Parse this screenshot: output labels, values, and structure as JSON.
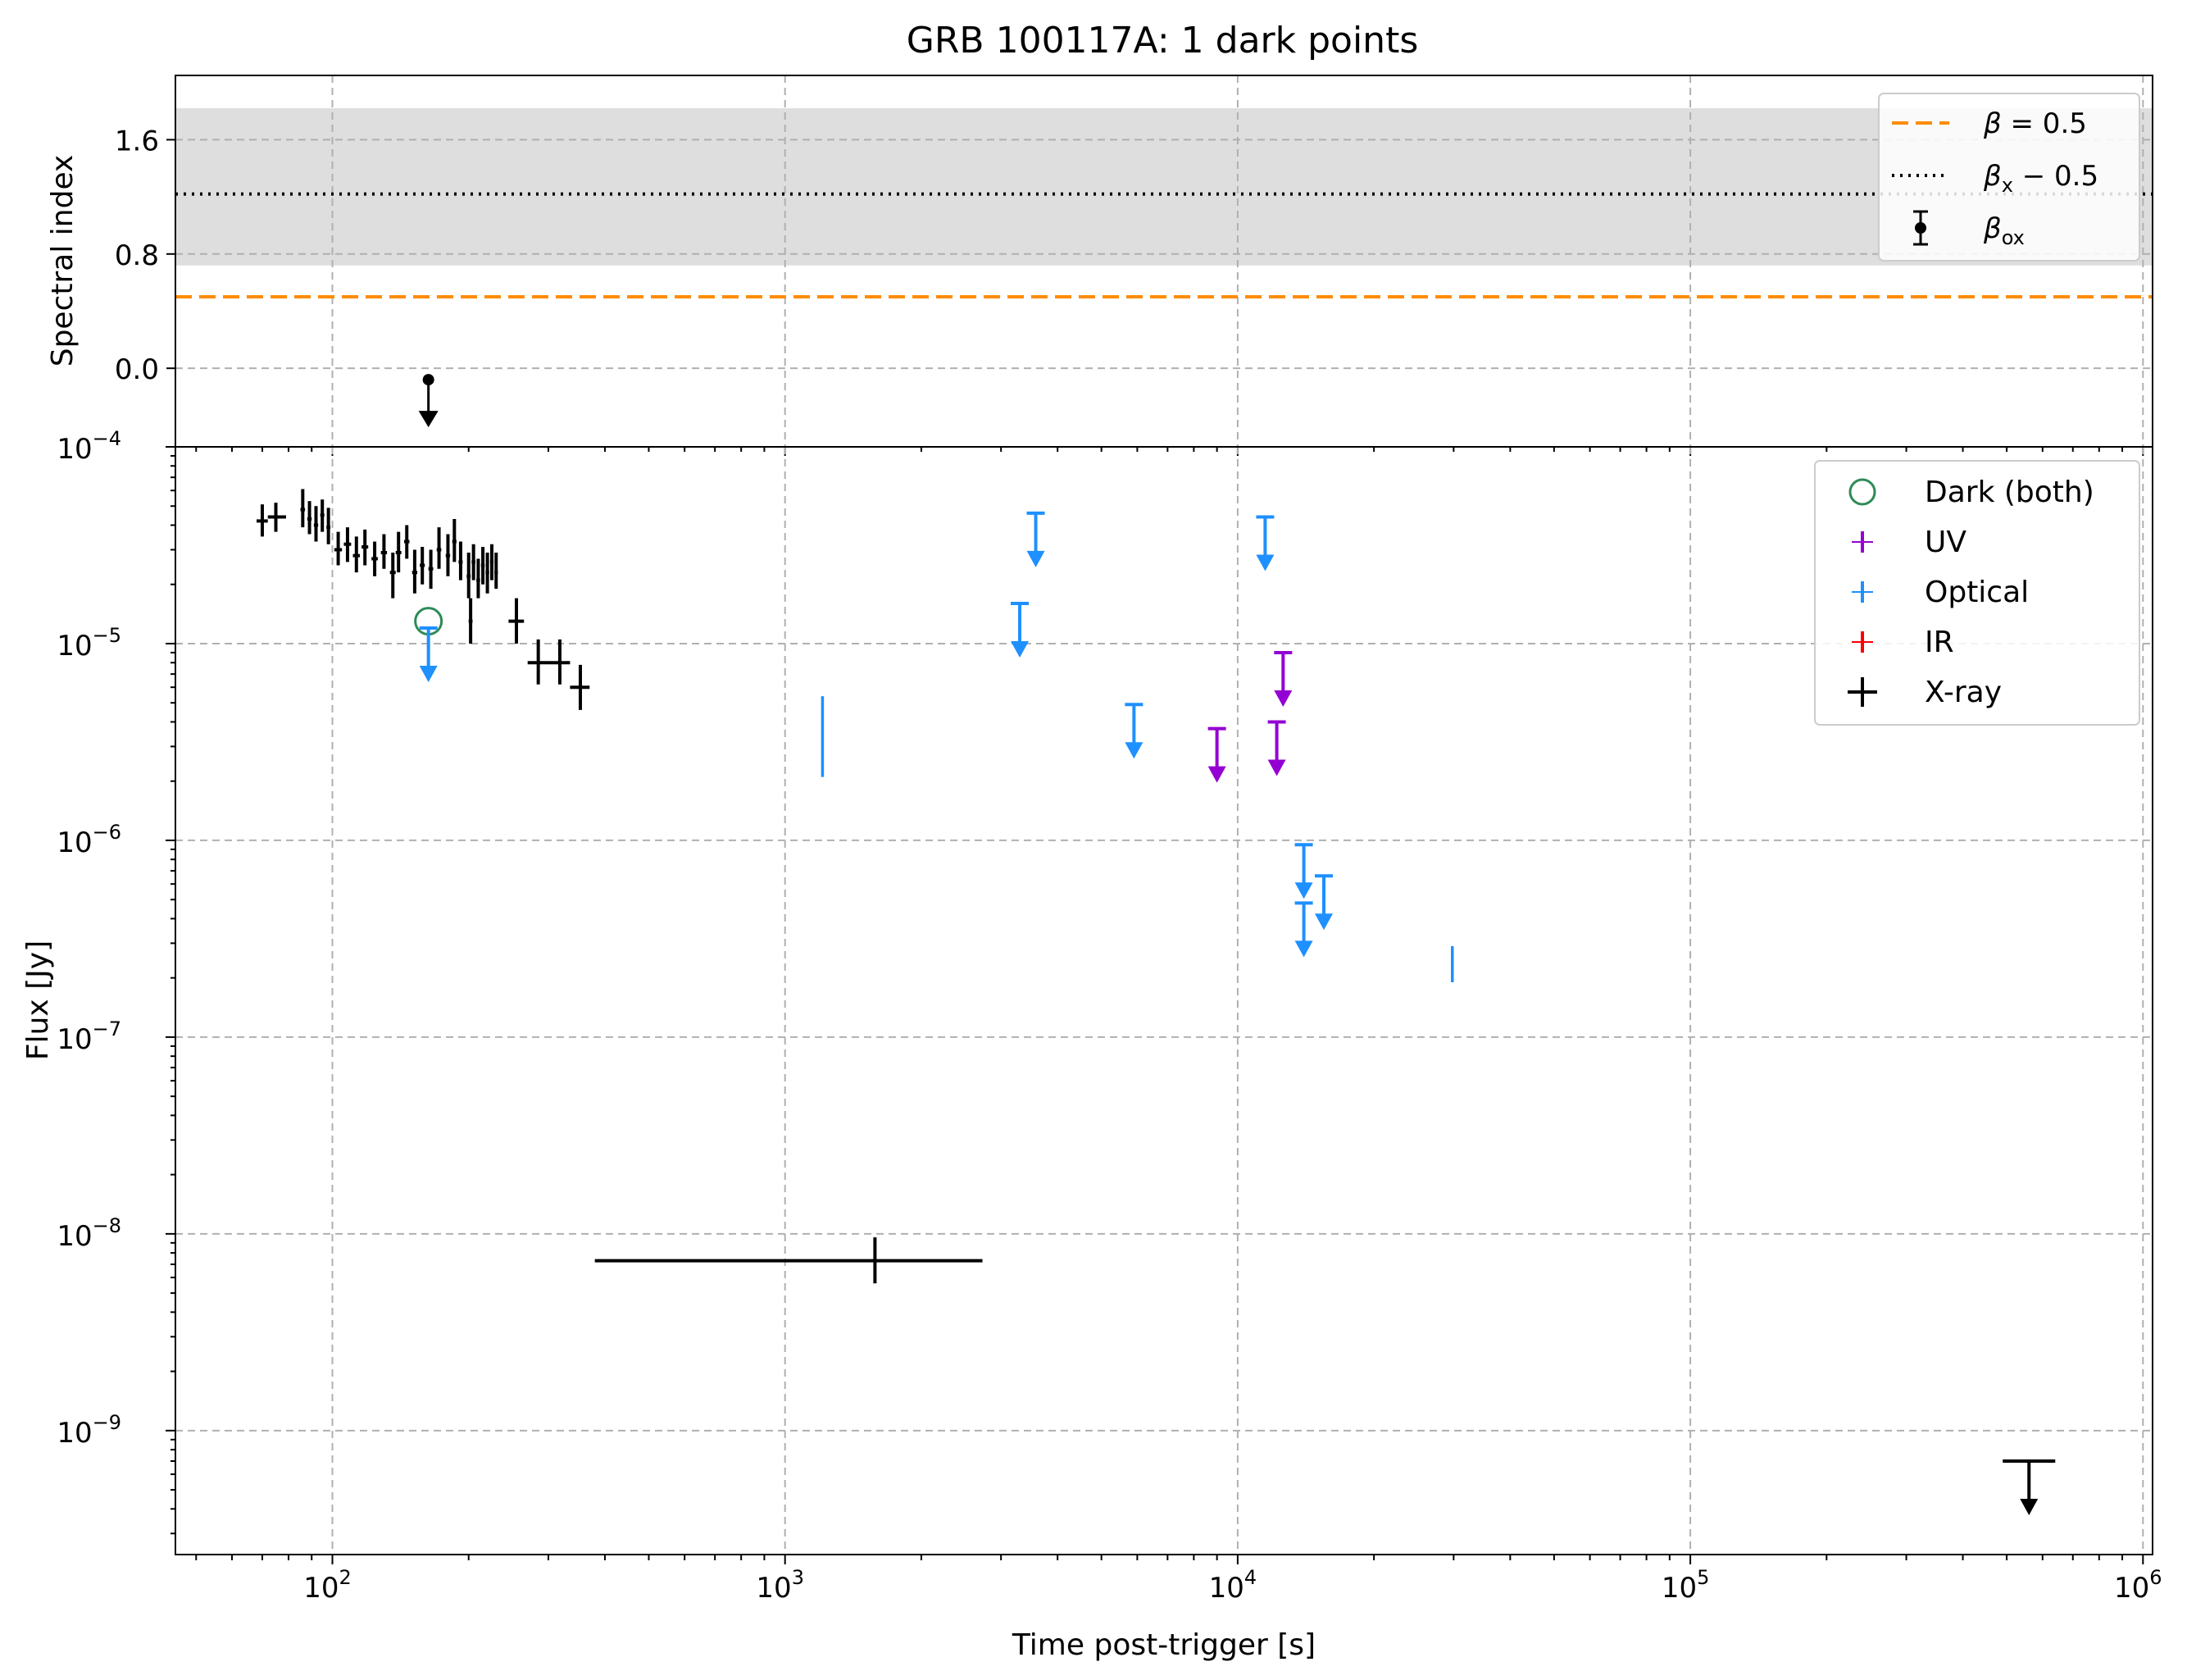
{
  "figure": {
    "title": "GRB 100117A: 1 dark points"
  },
  "chart_data": [
    {
      "panel": "top",
      "type": "scatter",
      "ylabel": "Spectral index",
      "xscale": "log",
      "xlim": [
        45,
        1050000
      ],
      "ylim": [
        -0.55,
        2.05
      ],
      "y_ticks": [
        {
          "value": 0.0,
          "label": "0.0"
        },
        {
          "value": 0.8,
          "label": "0.8"
        },
        {
          "value": 1.6,
          "label": "1.6"
        }
      ],
      "grid": true,
      "shaded_band": {
        "y_low": 0.72,
        "y_high": 1.82,
        "color": "#dedede"
      },
      "lines": [
        {
          "label_tex": [
            "β",
            " = 0.5"
          ],
          "y": 0.5,
          "style": "dashed",
          "color": "#ff8c00"
        },
        {
          "label_tex": [
            "β",
            "x",
            " − 0.5"
          ],
          "y": 1.22,
          "style": "dotted",
          "color": "#000000"
        }
      ],
      "points": [
        {
          "label_tex": [
            "β",
            "ox"
          ],
          "x": 163,
          "y": -0.08,
          "upper_limit": true,
          "color": "#000000"
        }
      ],
      "legend_position": "top-right"
    },
    {
      "panel": "bottom",
      "type": "scatter",
      "xlabel": "Time post-trigger [s]",
      "ylabel": "Flux [Jy]",
      "xscale": "log",
      "yscale": "log",
      "xlim": [
        45,
        1050000
      ],
      "ylim_log10": [
        -9.63,
        -4.0
      ],
      "x_ticks": [
        {
          "exp": 2,
          "base": "10",
          "sup": "2"
        },
        {
          "exp": 3,
          "base": "10",
          "sup": "3"
        },
        {
          "exp": 4,
          "base": "10",
          "sup": "4"
        },
        {
          "exp": 5,
          "base": "10",
          "sup": "5"
        },
        {
          "exp": 6,
          "base": "10",
          "sup": "6"
        }
      ],
      "y_ticks": [
        {
          "exp": -9,
          "base": "10",
          "sup": "−9"
        },
        {
          "exp": -8,
          "base": "10",
          "sup": "−8"
        },
        {
          "exp": -7,
          "base": "10",
          "sup": "−7"
        },
        {
          "exp": -6,
          "base": "10",
          "sup": "−6"
        },
        {
          "exp": -5,
          "base": "10",
          "sup": "−5"
        },
        {
          "exp": -4,
          "base": "10",
          "sup": "−4"
        }
      ],
      "grid": true,
      "legend_position": "top-right",
      "series": [
        {
          "name": "Dark (both)",
          "marker": "open-circle",
          "color": "#2e8b57",
          "points": [
            {
              "x": 163,
              "y": 1.3e-05
            }
          ]
        },
        {
          "name": "UV",
          "marker": "cross",
          "color": "#9400d3",
          "points": [
            {
              "x": 9000,
              "y": 3.7e-06,
              "upper_limit": true
            },
            {
              "x": 12200,
              "y": 4e-06,
              "upper_limit": true
            },
            {
              "x": 12600,
              "y": 9e-06,
              "upper_limit": true
            }
          ]
        },
        {
          "name": "Optical",
          "marker": "cross",
          "color": "#1e90ff",
          "points": [
            {
              "x": 163,
              "y": 1.2e-05,
              "upper_limit": true
            },
            {
              "x": 1210,
              "y": 3.8e-06,
              "xerr": [
                40,
                40
              ],
              "yerr": [
                2.1e-06,
                5.4e-06
              ]
            },
            {
              "x": 3300,
              "y": 1.6e-05,
              "upper_limit": true
            },
            {
              "x": 3580,
              "y": 4.6e-05,
              "upper_limit": true
            },
            {
              "x": 5900,
              "y": 4.9e-06,
              "upper_limit": true
            },
            {
              "x": 11500,
              "y": 4.4e-05,
              "upper_limit": true
            },
            {
              "x": 14000,
              "y": 9.5e-07,
              "upper_limit": true
            },
            {
              "x": 14000,
              "y": 4.8e-07,
              "upper_limit": true
            },
            {
              "x": 15500,
              "y": 6.6e-07,
              "upper_limit": true
            },
            {
              "x": 29800,
              "y": 2.4e-07,
              "xerr": [
                1000,
                1000
              ],
              "yerr": [
                1.9e-07,
                2.9e-07
              ]
            }
          ]
        },
        {
          "name": "IR",
          "marker": "cross",
          "color": "#ff0000",
          "points": []
        },
        {
          "name": "X-ray",
          "marker": "cross",
          "color": "#000000",
          "points": [
            {
              "x": 70,
              "y": 4.2e-05,
              "xerr": [
                68,
                72
              ],
              "yerr": [
                3.5e-05,
                5.1e-05
              ]
            },
            {
              "x": 75,
              "y": 4.4e-05,
              "xerr": [
                72,
                79
              ],
              "yerr": [
                3.7e-05,
                5.2e-05
              ]
            },
            {
              "x": 86,
              "y": 4.8e-05,
              "xerr": [
                85,
                87
              ],
              "yerr": [
                3.9e-05,
                6.1e-05
              ]
            },
            {
              "x": 89,
              "y": 4.3e-05,
              "xerr": [
                88,
                90
              ],
              "yerr": [
                3.6e-05,
                5.3e-05
              ]
            },
            {
              "x": 92,
              "y": 4e-05,
              "xerr": [
                91,
                93
              ],
              "yerr": [
                3.3e-05,
                5e-05
              ]
            },
            {
              "x": 95,
              "y": 4.5e-05,
              "xerr": [
                94,
                96
              ],
              "yerr": [
                3.7e-05,
                5.4e-05
              ]
            },
            {
              "x": 98,
              "y": 3.9e-05,
              "xerr": [
                97,
                99
              ],
              "yerr": [
                3.2e-05,
                4.9e-05
              ]
            },
            {
              "x": 103,
              "y": 3e-05,
              "xerr": [
                101,
                105
              ],
              "yerr": [
                2.5e-05,
                3.7e-05
              ]
            },
            {
              "x": 108,
              "y": 3.2e-05,
              "xerr": [
                106,
                110
              ],
              "yerr": [
                2.6e-05,
                3.9e-05
              ]
            },
            {
              "x": 113,
              "y": 2.8e-05,
              "xerr": [
                111,
                115
              ],
              "yerr": [
                2.3e-05,
                3.5e-05
              ]
            },
            {
              "x": 118,
              "y": 3.1e-05,
              "xerr": [
                116,
                120
              ],
              "yerr": [
                2.5e-05,
                3.8e-05
              ]
            },
            {
              "x": 124,
              "y": 2.7e-05,
              "xerr": [
                122,
                126
              ],
              "yerr": [
                2.2e-05,
                3.3e-05
              ]
            },
            {
              "x": 130,
              "y": 2.9e-05,
              "xerr": [
                128,
                132
              ],
              "yerr": [
                2.4e-05,
                3.6e-05
              ]
            },
            {
              "x": 136,
              "y": 2.3e-05,
              "xerr": [
                134,
                138
              ],
              "yerr": [
                1.7e-05,
                2.9e-05
              ]
            },
            {
              "x": 140,
              "y": 2.9e-05,
              "xerr": [
                138,
                142
              ],
              "yerr": [
                2.3e-05,
                3.7e-05
              ]
            },
            {
              "x": 146,
              "y": 3.3e-05,
              "xerr": [
                144,
                148
              ],
              "yerr": [
                2.7e-05,
                4e-05
              ]
            },
            {
              "x": 152,
              "y": 2.3e-05,
              "xerr": [
                150,
                154
              ],
              "yerr": [
                1.8e-05,
                3e-05
              ]
            },
            {
              "x": 158,
              "y": 2.5e-05,
              "xerr": [
                156,
                160
              ],
              "yerr": [
                2e-05,
                3.1e-05
              ]
            },
            {
              "x": 165,
              "y": 2.4e-05,
              "xerr": [
                163,
                167
              ],
              "yerr": [
                1.9e-05,
                3e-05
              ]
            },
            {
              "x": 172,
              "y": 3e-05,
              "xerr": [
                170,
                174
              ],
              "yerr": [
                2.4e-05,
                3.9e-05
              ]
            },
            {
              "x": 180,
              "y": 2.8e-05,
              "xerr": [
                178,
                182
              ],
              "yerr": [
                2.2e-05,
                3.6e-05
              ]
            },
            {
              "x": 186,
              "y": 3.3e-05,
              "xerr": [
                184,
                188
              ],
              "yerr": [
                2.6e-05,
                4.3e-05
              ]
            },
            {
              "x": 192,
              "y": 2.6e-05,
              "xerr": [
                190,
                194
              ],
              "yerr": [
                2.1e-05,
                3.3e-05
              ]
            },
            {
              "x": 200,
              "y": 2.2e-05,
              "xerr": [
                198,
                202
              ],
              "yerr": [
                1.7e-05,
                2.9e-05
              ]
            },
            {
              "x": 205,
              "y": 2.6e-05,
              "xerr": [
                203,
                207
              ],
              "yerr": [
                2.1e-05,
                3.2e-05
              ]
            },
            {
              "x": 210,
              "y": 2.1e-05,
              "xerr": [
                208,
                212
              ],
              "yerr": [
                1.7e-05,
                2.7e-05
              ]
            },
            {
              "x": 215,
              "y": 2.5e-05,
              "xerr": [
                213,
                217
              ],
              "yerr": [
                2e-05,
                3.1e-05
              ]
            },
            {
              "x": 220,
              "y": 2.3e-05,
              "xerr": [
                218,
                222
              ],
              "yerr": [
                1.8e-05,
                2.9e-05
              ]
            },
            {
              "x": 225,
              "y": 2.6e-05,
              "xerr": [
                223,
                227
              ],
              "yerr": [
                2.1e-05,
                3.2e-05
              ]
            },
            {
              "x": 230,
              "y": 2.3e-05,
              "xerr": [
                228,
                232
              ],
              "yerr": [
                1.9e-05,
                2.9e-05
              ]
            },
            {
              "x": 202,
              "y": 1.3e-05,
              "xerr": [
                200,
                204
              ],
              "yerr": [
                1e-05,
                1.7e-05
              ]
            },
            {
              "x": 255,
              "y": 1.3e-05,
              "xerr": [
                245,
                265
              ],
              "yerr": [
                1e-05,
                1.7e-05
              ]
            },
            {
              "x": 285,
              "y": 8e-06,
              "xerr": [
                270,
                300
              ],
              "yerr": [
                6.2e-06,
                1.05e-05
              ]
            },
            {
              "x": 318,
              "y": 8e-06,
              "xerr": [
                300,
                335
              ],
              "yerr": [
                6.2e-06,
                1.05e-05
              ]
            },
            {
              "x": 353,
              "y": 6e-06,
              "xerr": [
                335,
                370
              ],
              "yerr": [
                4.6e-06,
                7.8e-06
              ]
            },
            {
              "x": 1580,
              "y": 7.3e-09,
              "xerr": [
                380,
                2730
              ],
              "yerr": [
                5.6e-09,
                9.6e-09
              ]
            },
            {
              "x": 560000,
              "y": 7e-10,
              "xerr": [
                490000,
                640000
              ],
              "upper_limit": true
            }
          ]
        }
      ]
    }
  ]
}
